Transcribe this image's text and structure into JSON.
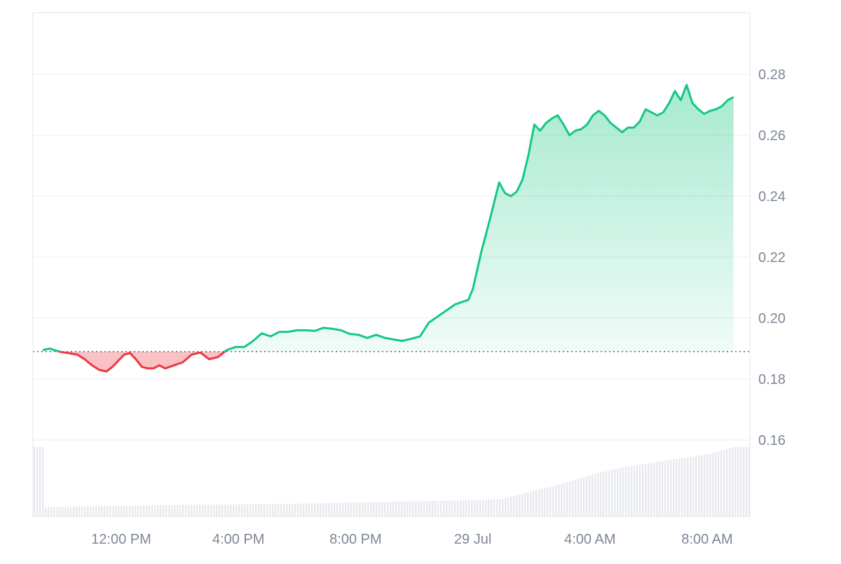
{
  "chart_data": {
    "type": "area",
    "title": "",
    "xlabel": "",
    "ylabel": "",
    "ylim": [
      0.138,
      0.298
    ],
    "yticks": [
      "0.16",
      "0.18",
      "0.20",
      "0.22",
      "0.24",
      "0.26",
      "0.28"
    ],
    "xtick_labels": [
      "12:00 PM",
      "4:00 PM",
      "8:00 PM",
      "29 Jul",
      "4:00 AM",
      "8:00 AM"
    ],
    "xlim_hours_from_12pm": [
      -2.68,
      20.9
    ],
    "baseline": 0.189,
    "grid": true,
    "legend": "none",
    "colors": {
      "up": "#16c784",
      "down": "#ea3943",
      "up_fill": "#16c784",
      "down_fill": "#ea3943",
      "volume": "#e7e9ee",
      "baseline": "#555555"
    },
    "series": [
      {
        "x": [
          -2.68,
          -2.45,
          -2.1,
          -1.8,
          -1.5,
          -1.25,
          -1.0,
          -0.75,
          -0.5,
          -0.3,
          -0.1,
          0.1,
          0.3,
          0.5,
          0.7,
          0.9,
          1.1,
          1.3,
          1.5,
          1.8,
          2.1,
          2.4,
          2.7,
          3.0,
          3.3,
          3.6,
          3.9,
          4.2,
          4.5,
          4.8,
          5.1,
          5.4,
          5.7,
          6.0,
          6.3,
          6.6,
          6.9,
          7.2,
          7.5,
          7.8,
          8.1,
          8.4,
          8.7,
          9.0,
          9.3,
          9.6,
          9.9,
          10.2,
          10.5,
          10.8,
          11.1,
          11.4,
          11.7,
          11.85,
          12.0,
          12.3,
          12.6,
          12.9,
          13.1,
          13.3,
          13.5,
          13.7,
          13.9,
          14.1,
          14.3,
          14.5,
          14.7,
          14.9,
          15.1,
          15.3,
          15.5,
          15.7,
          15.9,
          16.1,
          16.3,
          16.5,
          16.7,
          16.9,
          17.1,
          17.3,
          17.5,
          17.7,
          17.9,
          18.1,
          18.3,
          18.5,
          18.7,
          18.9,
          19.1,
          19.3,
          19.5,
          19.7,
          19.9,
          20.1,
          20.3,
          20.5,
          20.7,
          20.9
        ],
        "y": [
          0.1895,
          0.19,
          0.189,
          0.1885,
          0.188,
          0.1865,
          0.1845,
          0.183,
          0.1825,
          0.184,
          0.186,
          0.188,
          0.1885,
          0.1865,
          0.184,
          0.1835,
          0.1835,
          0.1845,
          0.1835,
          0.1845,
          0.1855,
          0.188,
          0.1887,
          0.1865,
          0.1872,
          0.1895,
          0.1905,
          0.1905,
          0.1925,
          0.195,
          0.194,
          0.1955,
          0.1955,
          0.196,
          0.196,
          0.1958,
          0.1968,
          0.1965,
          0.196,
          0.1948,
          0.1945,
          0.1935,
          0.1945,
          0.1935,
          0.193,
          0.1925,
          0.1932,
          0.194,
          0.1985,
          0.2005,
          0.2025,
          0.2045,
          0.2055,
          0.206,
          0.2095,
          0.222,
          0.233,
          0.2445,
          0.241,
          0.24,
          0.2415,
          0.2455,
          0.2535,
          0.2635,
          0.2615,
          0.264,
          0.2655,
          0.2665,
          0.2635,
          0.26,
          0.2615,
          0.262,
          0.2635,
          0.2665,
          0.268,
          0.2665,
          0.264,
          0.2625,
          0.261,
          0.2625,
          0.2625,
          0.2645,
          0.2685,
          0.2675,
          0.2665,
          0.2675,
          0.2705,
          0.2745,
          0.2715,
          0.2765,
          0.2705,
          0.2685,
          0.267,
          0.268,
          0.2685,
          0.2695,
          0.2715,
          0.2725
        ]
      }
    ],
    "volume": {
      "x": [
        -2.68,
        0,
        2,
        4,
        6,
        8,
        10,
        12,
        13,
        14,
        15,
        16,
        17,
        18,
        19,
        20,
        20.9
      ],
      "v": [
        0.04,
        0.045,
        0.05,
        0.052,
        0.055,
        0.06,
        0.065,
        0.07,
        0.075,
        0.11,
        0.14,
        0.18,
        0.21,
        0.23,
        0.25,
        0.27,
        0.3
      ]
    }
  }
}
